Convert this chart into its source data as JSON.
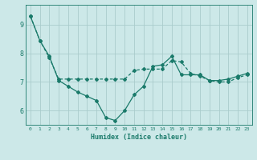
{
  "title": "",
  "xlabel": "Humidex (Indice chaleur)",
  "background_color": "#cce8e8",
  "grid_color": "#aacccc",
  "line_color": "#1a7a6a",
  "x_ticks": [
    0,
    1,
    2,
    3,
    4,
    5,
    6,
    7,
    8,
    9,
    10,
    11,
    12,
    13,
    14,
    15,
    16,
    17,
    18,
    19,
    20,
    21,
    22,
    23
  ],
  "y_ticks": [
    6,
    7,
    8,
    9
  ],
  "ylim": [
    5.5,
    9.7
  ],
  "xlim": [
    -0.5,
    23.5
  ],
  "line1_x": [
    0,
    1,
    2,
    3,
    4,
    5,
    6,
    7,
    8,
    9,
    10,
    11,
    12,
    13,
    14,
    15,
    16,
    17,
    18,
    19,
    20,
    21,
    22,
    23
  ],
  "line1_y": [
    9.3,
    8.45,
    7.9,
    7.05,
    6.85,
    6.65,
    6.5,
    6.35,
    5.75,
    5.65,
    6.0,
    6.55,
    6.85,
    7.55,
    7.6,
    7.9,
    7.25,
    7.25,
    7.25,
    7.05,
    7.05,
    7.1,
    7.2,
    7.3
  ],
  "line2_x": [
    0,
    1,
    2,
    3,
    4,
    5,
    6,
    7,
    8,
    9,
    10,
    11,
    12,
    13,
    14,
    15,
    16,
    17,
    18,
    19,
    20,
    21,
    22,
    23
  ],
  "line2_y": [
    9.3,
    8.45,
    7.85,
    7.1,
    7.1,
    7.1,
    7.1,
    7.1,
    7.1,
    7.1,
    7.1,
    7.4,
    7.45,
    7.45,
    7.45,
    7.75,
    7.7,
    7.3,
    7.2,
    7.05,
    7.0,
    7.0,
    7.15,
    7.25
  ]
}
